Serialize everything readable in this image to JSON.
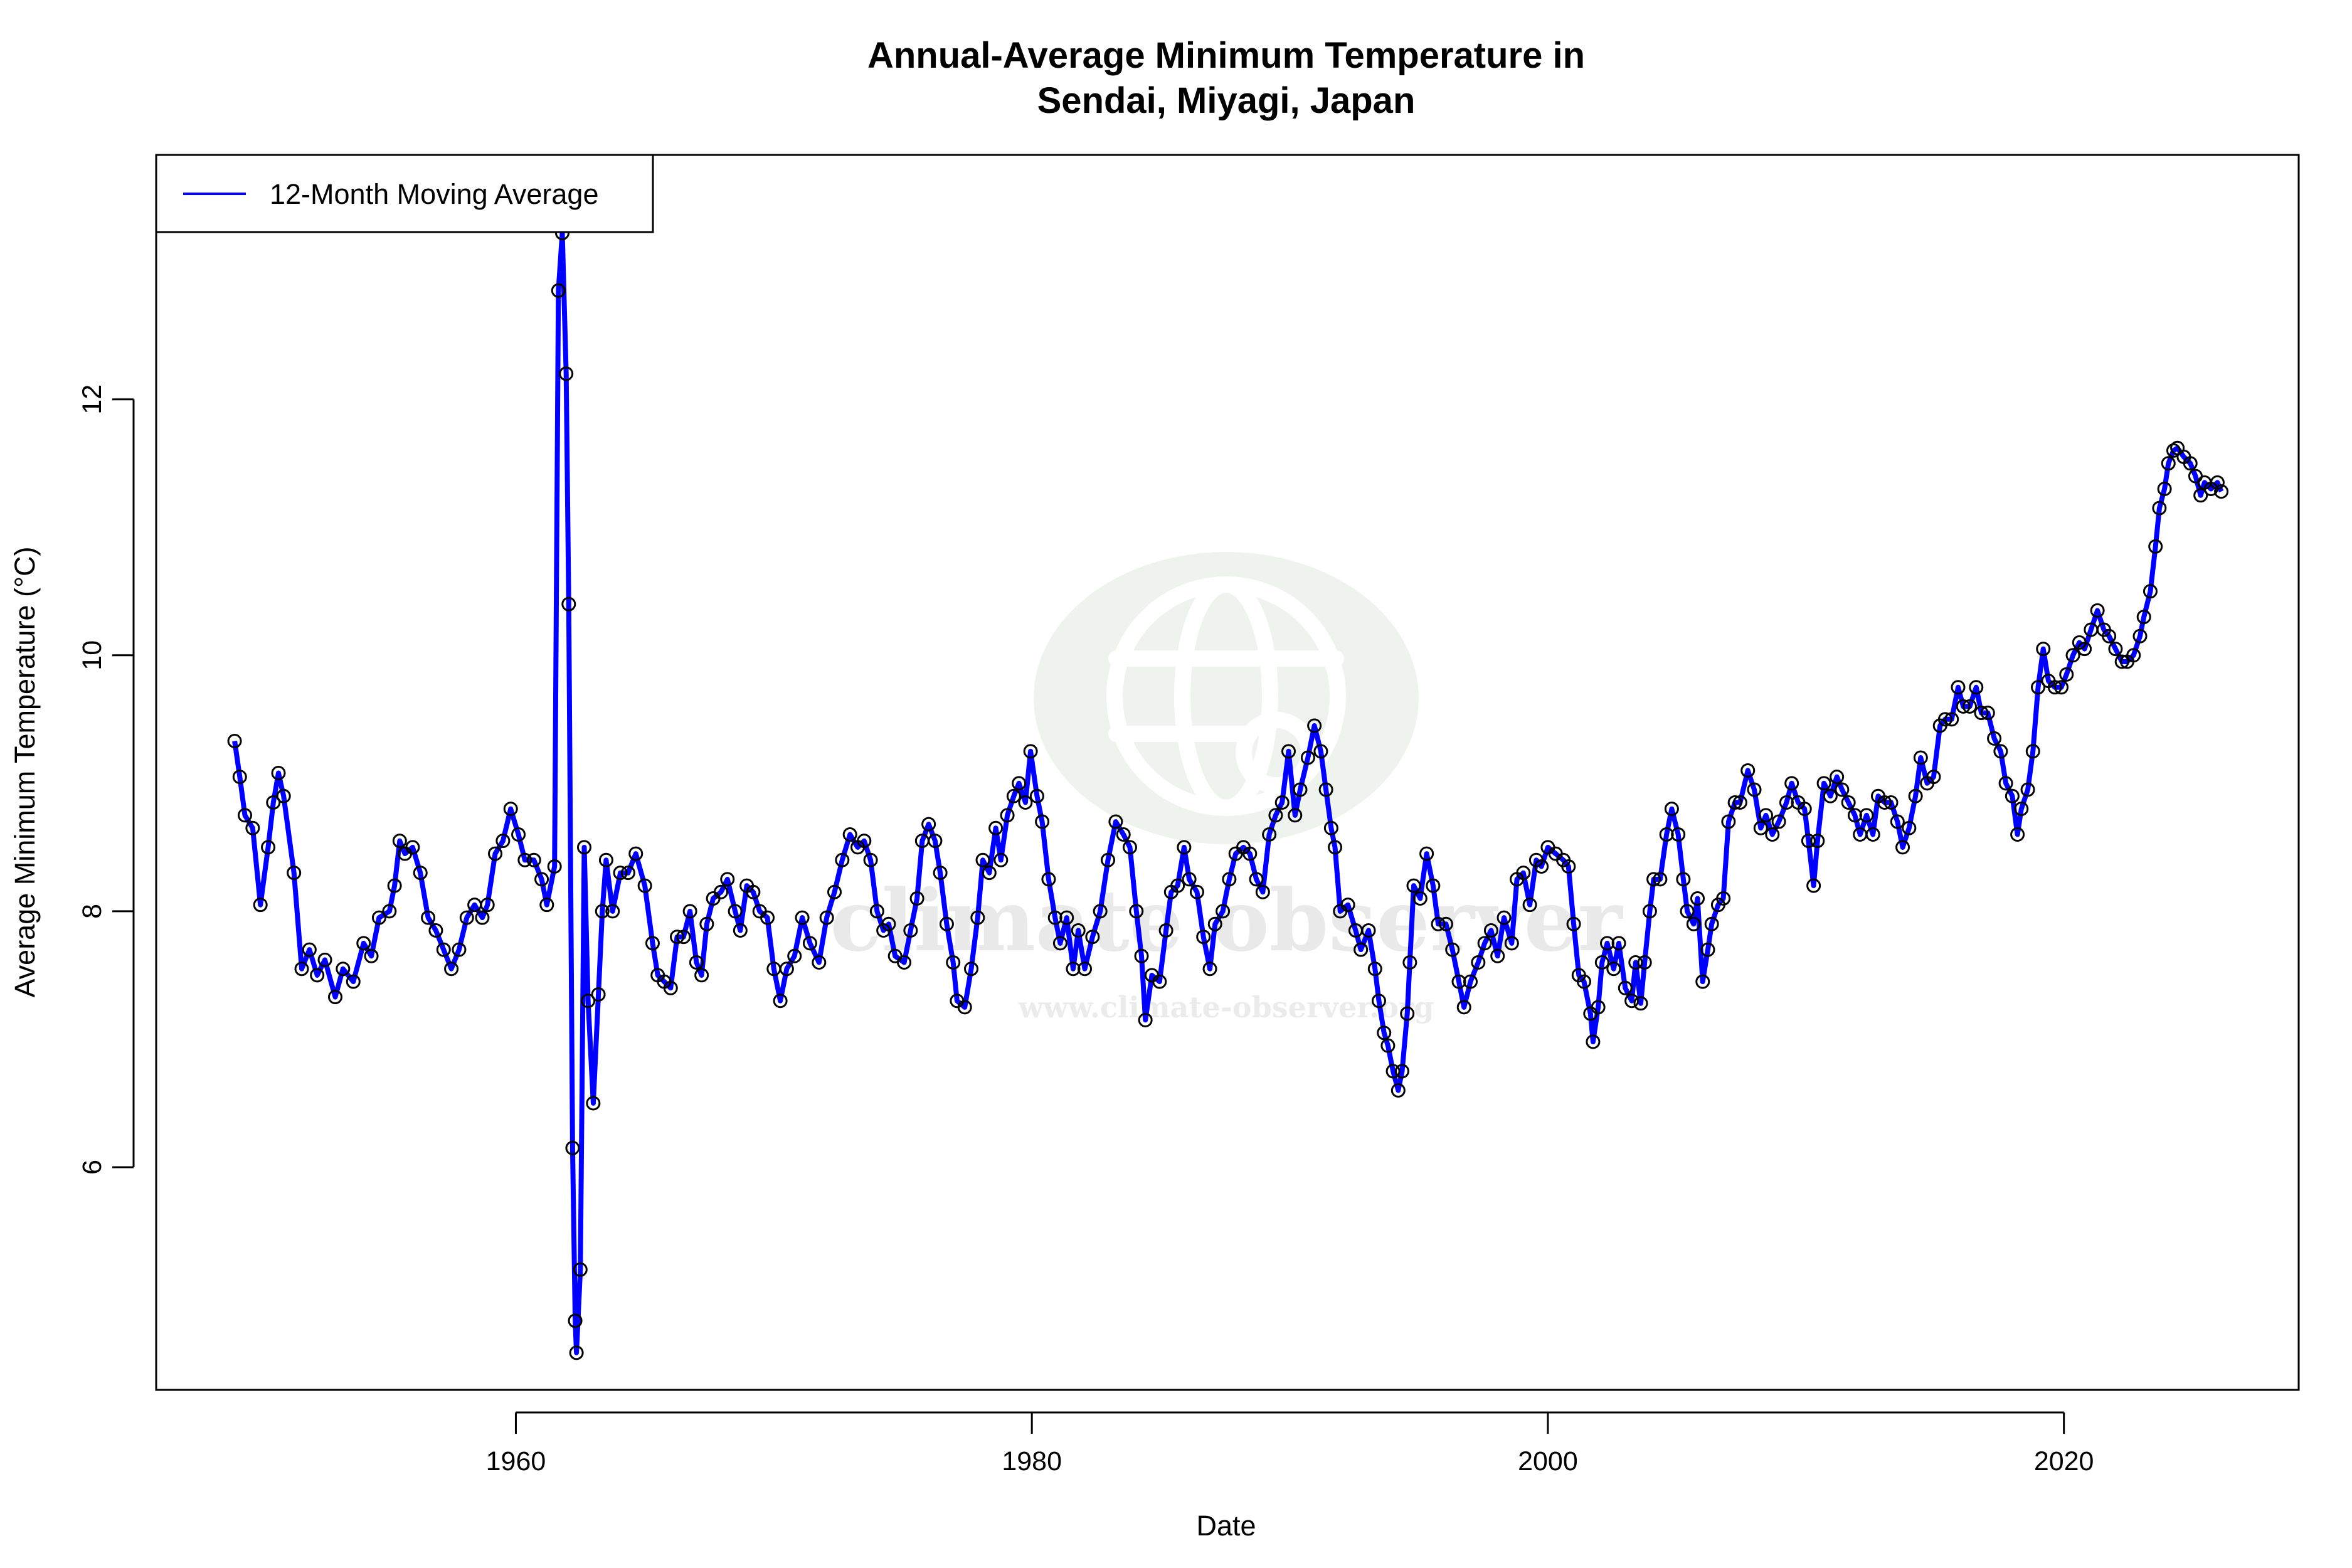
{
  "chart_data": {
    "type": "line",
    "title_line1": "Annual-Average Minimum Temperature in",
    "title_line2": "Sendai, Miyagi, Japan",
    "xlabel": "Date",
    "ylabel": "Average Minimum Temperature (°C)",
    "xlim": [
      1946.06,
      2029.1
    ],
    "ylim": [
      4.26,
      13.91
    ],
    "xticks": [
      1960,
      1980,
      2000,
      2020
    ],
    "yticks": [
      6,
      8,
      10,
      12
    ],
    "grid": false,
    "legend": {
      "position": "top-left",
      "entries": [
        "12-Month Moving Average"
      ]
    },
    "colors": {
      "line": "#0000ff",
      "points": "#000000",
      "watermark": "#eef3ee"
    },
    "watermark": {
      "text": "climate observer",
      "url": "www.climate-observer.org",
      "icon": "globe-icon"
    },
    "series": [
      {
        "name": "12-Month Moving Average",
        "x": [
          1949.1,
          1949.3,
          1949.5,
          1949.8,
          1950.1,
          1950.4,
          1950.6,
          1950.8,
          1951.0,
          1951.4,
          1951.7,
          1952.0,
          1952.3,
          1952.6,
          1953.0,
          1953.3,
          1953.7,
          1954.1,
          1954.4,
          1954.7,
          1955.1,
          1955.3,
          1955.5,
          1955.7,
          1956.0,
          1956.3,
          1956.6,
          1956.9,
          1957.2,
          1957.5,
          1957.8,
          1958.1,
          1958.4,
          1958.7,
          1958.9,
          1959.2,
          1959.5,
          1959.8,
          1960.1,
          1960.35,
          1960.7,
          1961.0,
          1961.2,
          1961.5,
          1961.65,
          1961.8,
          1961.95,
          1962.05,
          1962.2,
          1962.3,
          1962.35,
          1962.5,
          1962.65,
          1962.8,
          1963.0,
          1963.2,
          1963.35,
          1963.5,
          1963.75,
          1964.05,
          1964.35,
          1964.65,
          1965.0,
          1965.3,
          1965.5,
          1965.75,
          1966.0,
          1966.25,
          1966.5,
          1966.75,
          1967.0,
          1967.2,
          1967.4,
          1967.65,
          1967.95,
          1968.2,
          1968.5,
          1968.7,
          1968.95,
          1969.2,
          1969.45,
          1969.75,
          1970.0,
          1970.25,
          1970.5,
          1970.8,
          1971.1,
          1971.4,
          1971.75,
          1972.05,
          1972.35,
          1972.65,
          1972.95,
          1973.25,
          1973.5,
          1973.75,
          1974.0,
          1974.25,
          1974.45,
          1974.7,
          1975.05,
          1975.3,
          1975.55,
          1975.75,
          1976.0,
          1976.25,
          1976.45,
          1976.7,
          1976.95,
          1977.1,
          1977.4,
          1977.65,
          1977.9,
          1978.1,
          1978.35,
          1978.6,
          1978.8,
          1979.05,
          1979.3,
          1979.5,
          1979.75,
          1979.95,
          1980.2,
          1980.4,
          1980.65,
          1980.9,
          1981.1,
          1981.35,
          1981.6,
          1981.8,
          1982.05,
          1982.35,
          1982.65,
          1982.95,
          1983.25,
          1983.55,
          1983.8,
          1984.05,
          1984.25,
          1984.4,
          1984.65,
          1984.95,
          1985.2,
          1985.4,
          1985.65,
          1985.9,
          1986.1,
          1986.4,
          1986.65,
          1986.9,
          1987.1,
          1987.4,
          1987.65,
          1987.9,
          1988.2,
          1988.45,
          1988.7,
          1988.95,
          1989.2,
          1989.45,
          1989.7,
          1989.95,
          1990.2,
          1990.4,
          1990.7,
          1990.95,
          1991.2,
          1991.4,
          1991.6,
          1991.75,
          1991.95,
          1992.25,
          1992.55,
          1992.75,
          1993.05,
          1993.3,
          1993.45,
          1993.65,
          1993.8,
          1994.0,
          1994.2,
          1994.35,
          1994.55,
          1994.65,
          1994.8,
          1995.05,
          1995.3,
          1995.55,
          1995.75,
          1996.05,
          1996.3,
          1996.55,
          1996.75,
          1997.0,
          1997.3,
          1997.55,
          1997.8,
          1998.05,
          1998.3,
          1998.6,
          1998.8,
          1999.05,
          1999.3,
          1999.55,
          1999.75,
          2000.0,
          2000.3,
          2000.6,
          2000.8,
          2001.0,
          2001.2,
          2001.4,
          2001.65,
          2001.75,
          2001.95,
          2002.1,
          2002.3,
          2002.55,
          2002.75,
          2003.0,
          2003.25,
          2003.4,
          2003.6,
          2003.75,
          2003.95,
          2004.1,
          2004.35,
          2004.6,
          2004.8,
          2005.05,
          2005.25,
          2005.4,
          2005.65,
          2005.8,
          2006.0,
          2006.2,
          2006.35,
          2006.6,
          2006.8,
          2007.0,
          2007.25,
          2007.45,
          2007.75,
          2008.0,
          2008.25,
          2008.45,
          2008.7,
          2008.95,
          2009.25,
          2009.45,
          2009.7,
          2009.95,
          2010.1,
          2010.3,
          2010.45,
          2010.7,
          2010.95,
          2011.2,
          2011.4,
          2011.65,
          2011.9,
          2012.1,
          2012.35,
          2012.6,
          2012.8,
          2013.05,
          2013.3,
          2013.55,
          2013.75,
          2014.0,
          2014.25,
          2014.45,
          2014.7,
          2014.95,
          2015.2,
          2015.4,
          2015.65,
          2015.9,
          2016.1,
          2016.35,
          2016.6,
          2016.8,
          2017.05,
          2017.3,
          2017.55,
          2017.75,
          2018.0,
          2018.2,
          2018.35,
          2018.6,
          2018.8,
          2019.0,
          2019.2,
          2019.4,
          2019.65,
          2019.9,
          2020.1,
          2020.35,
          2020.6,
          2020.8,
          2021.05,
          2021.3,
          2021.55,
          2021.75,
          2022.0,
          2022.25,
          2022.45,
          2022.7,
          2022.95,
          2023.1,
          2023.35,
          2023.55,
          2023.7,
          2023.9,
          2024.05,
          2024.25,
          2024.4,
          2024.65,
          2024.9,
          2025.1,
          2025.3,
          2025.45,
          2025.7,
          2025.95,
          2026.1
        ],
        "y": [
          9.33,
          9.05,
          8.75,
          8.65,
          8.05,
          8.5,
          8.85,
          9.08,
          8.9,
          8.3,
          7.55,
          7.7,
          7.5,
          7.62,
          7.33,
          7.55,
          7.45,
          7.75,
          7.65,
          7.95,
          8.0,
          8.2,
          8.55,
          8.45,
          8.5,
          8.3,
          7.95,
          7.85,
          7.7,
          7.55,
          7.7,
          7.95,
          8.05,
          7.95,
          8.05,
          8.45,
          8.55,
          8.8,
          8.6,
          8.4,
          8.4,
          8.25,
          8.05,
          8.35,
          12.85,
          13.3,
          12.2,
          10.4,
          6.15,
          4.8,
          4.55,
          5.2,
          8.5,
          7.3,
          6.5,
          7.35,
          8.0,
          8.4,
          8.0,
          8.3,
          8.3,
          8.45,
          8.2,
          7.75,
          7.5,
          7.45,
          7.4,
          7.8,
          7.8,
          8.0,
          7.6,
          7.5,
          7.9,
          8.1,
          8.15,
          8.25,
          8.0,
          7.85,
          8.2,
          8.15,
          8.0,
          7.95,
          7.55,
          7.3,
          7.55,
          7.65,
          7.95,
          7.75,
          7.6,
          7.95,
          8.15,
          8.4,
          8.6,
          8.5,
          8.55,
          8.4,
          8.0,
          7.85,
          7.9,
          7.65,
          7.6,
          7.85,
          8.1,
          8.55,
          8.68,
          8.55,
          8.3,
          7.9,
          7.6,
          7.3,
          7.25,
          7.55,
          7.95,
          8.4,
          8.3,
          8.65,
          8.4,
          8.75,
          8.9,
          9.0,
          8.85,
          9.25,
          8.9,
          8.7,
          8.25,
          7.95,
          7.75,
          7.95,
          7.55,
          7.85,
          7.55,
          7.8,
          8.0,
          8.4,
          8.7,
          8.6,
          8.5,
          8.0,
          7.65,
          7.15,
          7.5,
          7.45,
          7.85,
          8.15,
          8.2,
          8.5,
          8.25,
          8.15,
          7.8,
          7.55,
          7.9,
          8.0,
          8.25,
          8.45,
          8.5,
          8.45,
          8.25,
          8.15,
          8.6,
          8.75,
          8.85,
          9.25,
          8.75,
          8.95,
          9.2,
          9.45,
          9.25,
          8.95,
          8.65,
          8.5,
          8.0,
          8.05,
          7.85,
          7.7,
          7.85,
          7.55,
          7.3,
          7.05,
          6.95,
          6.75,
          6.6,
          6.75,
          7.2,
          7.6,
          8.2,
          8.1,
          8.45,
          8.2,
          7.9,
          7.9,
          7.7,
          7.45,
          7.25,
          7.45,
          7.6,
          7.75,
          7.85,
          7.65,
          7.95,
          7.75,
          8.25,
          8.3,
          8.05,
          8.4,
          8.35,
          8.5,
          8.45,
          8.4,
          8.35,
          7.9,
          7.5,
          7.45,
          7.2,
          6.98,
          7.25,
          7.6,
          7.75,
          7.55,
          7.75,
          7.4,
          7.3,
          7.6,
          7.28,
          7.6,
          8.0,
          8.25,
          8.25,
          8.6,
          8.8,
          8.6,
          8.25,
          8.0,
          7.9,
          8.1,
          7.45,
          7.7,
          7.9,
          8.05,
          8.1,
          8.7,
          8.85,
          8.85,
          9.1,
          8.95,
          8.65,
          8.75,
          8.6,
          8.7,
          8.85,
          9.0,
          8.85,
          8.8,
          8.55,
          8.2,
          8.55,
          9.0,
          8.9,
          9.05,
          8.95,
          8.85,
          8.75,
          8.6,
          8.75,
          8.6,
          8.9,
          8.85,
          8.85,
          8.7,
          8.5,
          8.65,
          8.9,
          9.2,
          9.0,
          9.05,
          9.45,
          9.5,
          9.5,
          9.75,
          9.6,
          9.6,
          9.75,
          9.55,
          9.55,
          9.35,
          9.25,
          9.0,
          8.9,
          8.6,
          8.8,
          8.95,
          9.25,
          9.75,
          10.05,
          9.8,
          9.75,
          9.75,
          9.85,
          10.0,
          10.1,
          10.05,
          10.2,
          10.35,
          10.2,
          10.15,
          10.05,
          9.95,
          9.95,
          10.0,
          10.15,
          10.3,
          10.5,
          10.85,
          11.15,
          11.3,
          11.5,
          11.6,
          11.62,
          11.55,
          11.5,
          11.4,
          11.25,
          11.35,
          11.3,
          11.35,
          11.28
        ]
      }
    ]
  }
}
